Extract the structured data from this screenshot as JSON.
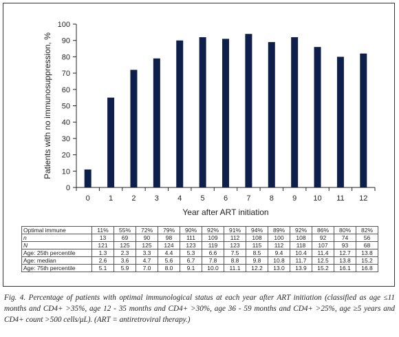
{
  "chart_data": {
    "type": "bar",
    "categories": [
      "0",
      "1",
      "2",
      "3",
      "4",
      "5",
      "6",
      "7",
      "8",
      "9",
      "10",
      "11",
      "12"
    ],
    "values": [
      11,
      55,
      72,
      79,
      90,
      92,
      91,
      94,
      89,
      92,
      86,
      80,
      82
    ],
    "xlabel": "Year after ART initiation",
    "ylabel": "Patients with no immunosuppression, %",
    "ylim": [
      0,
      100
    ],
    "yticks": [
      "0",
      "10",
      "20",
      "30",
      "40",
      "50",
      "60",
      "70",
      "80",
      "90",
      "100"
    ],
    "bar_color": "#0d1f4a",
    "grid": false
  },
  "table": {
    "rows": [
      {
        "label": "Optimal immune",
        "italic": false,
        "values": [
          "11%",
          "55%",
          "72%",
          "79%",
          "90%",
          "92%",
          "91%",
          "94%",
          "89%",
          "92%",
          "86%",
          "80%",
          "82%"
        ]
      },
      {
        "label": "n",
        "italic": true,
        "values": [
          "13",
          "69",
          "90",
          "98",
          "111",
          "109",
          "112",
          "108",
          "100",
          "108",
          "92",
          "74",
          "56"
        ]
      },
      {
        "label": "N",
        "italic": true,
        "values": [
          "121",
          "125",
          "125",
          "124",
          "123",
          "119",
          "123",
          "115",
          "112",
          "118",
          "107",
          "93",
          "68"
        ]
      },
      {
        "label": "Age: 25th percentile",
        "italic": false,
        "values": [
          "1.3",
          "2.3",
          "3.3",
          "4.4",
          "5.3",
          "6.6",
          "7.5",
          "8.5",
          "9.4",
          "10.4",
          "11.4",
          "12.7",
          "13.8"
        ]
      },
      {
        "label": "Age: median",
        "italic": false,
        "values": [
          "2.6",
          "3.6",
          "4.7",
          "5.6",
          "6.7",
          "7.8",
          "8.8",
          "9.8",
          "10.8",
          "11.7",
          "12.5",
          "13.8",
          "15.2"
        ]
      },
      {
        "label": "Age: 75th percentile",
        "italic": false,
        "values": [
          "5.1",
          "5.9",
          "7.0",
          "8.0",
          "9.1",
          "10.0",
          "11.1",
          "12.2",
          "13.0",
          "13.9",
          "15.2",
          "16.1",
          "16.8"
        ]
      }
    ]
  },
  "caption": "Fig. 4. Percentage of patients with optimal immunological status at each year after ART initiation (classified as age ≤11 months and CD4+ >35%, age 12 - 35 months and CD4+ >30%, age 36 - 59 months and CD4+ >25%, age ≥5 years and CD4+ count >500 cells/μL). (ART = antiretroviral therapy.)"
}
